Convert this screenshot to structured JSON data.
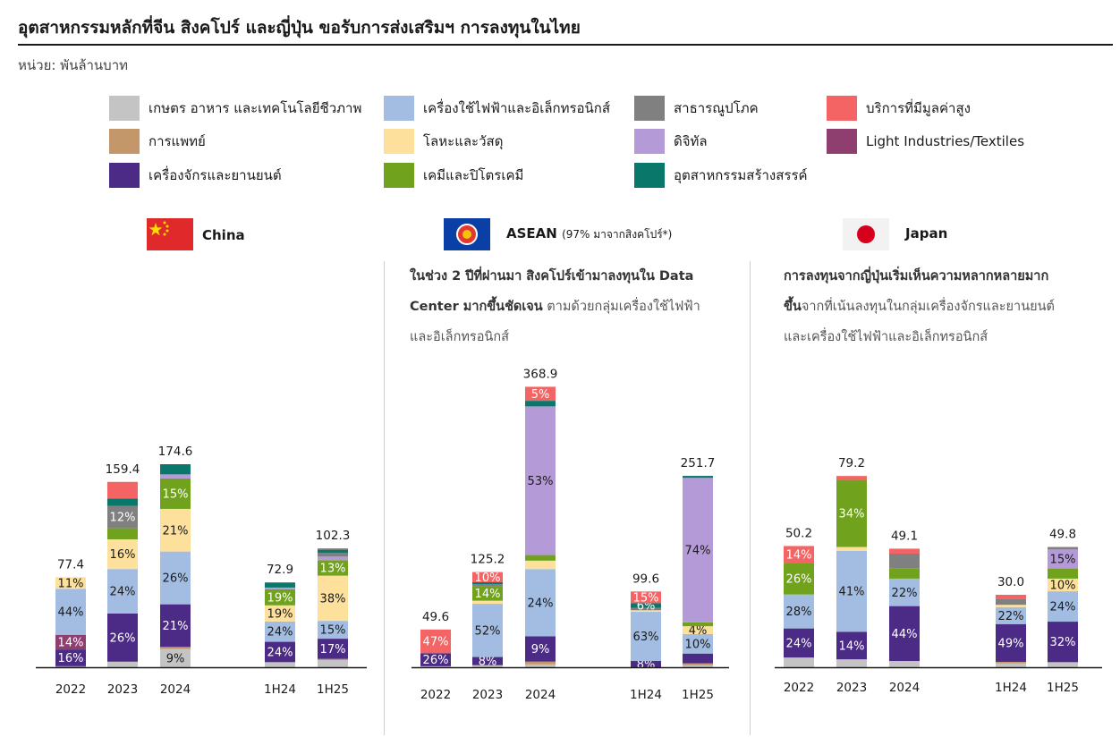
{
  "title": "อุตสาหกรรมหลักที่จีน  สิงคโปร์ และญี่ปุ่น ขอรับการส่งเสริมฯ  การลงทุนในไทย",
  "unit": "หน่วย: พันล้านบาท",
  "legend": [
    {
      "key": "agri",
      "label": "เกษตร อาหาร และเทคโนโลยีชีวภาพ",
      "color": "#c4c4c4"
    },
    {
      "key": "elec",
      "label": "เครื่องใช้ไฟฟ้าและอิเล็กทรอนิกส์",
      "color": "#a3bde2"
    },
    {
      "key": "util",
      "label": "สาธารณูปโภค",
      "color": "#808080"
    },
    {
      "key": "hvs",
      "label": "บริการที่มีมูลค่าสูง",
      "color": "#f46464"
    },
    {
      "key": "med",
      "label": "การแพทย์",
      "color": "#c4976b"
    },
    {
      "key": "metal",
      "label": "โลหะและวัสดุ",
      "color": "#fde09b"
    },
    {
      "key": "digital",
      "label": "ดิจิทัล",
      "color": "#b59ad8"
    },
    {
      "key": "light",
      "label": "Light Industries/Textiles",
      "color": "#8e3e6f"
    },
    {
      "key": "mach",
      "label": "เครื่องจักรและยานยนต์",
      "color": "#4b2b85"
    },
    {
      "key": "chem",
      "label": "เคมีและปิโตรเคมี",
      "color": "#70a21e"
    },
    {
      "key": "creative",
      "label": "อุตสาหกรรมสร้างสรรค์",
      "color": "#0a776b"
    }
  ],
  "panels": [
    {
      "name": "China",
      "subtitle": ""
    },
    {
      "name": "ASEAN",
      "subtitle": "(97% มาจากสิงคโปร์*)"
    },
    {
      "name": "Japan",
      "subtitle": ""
    }
  ],
  "notes": {
    "asean": {
      "bold1": "ในช่วง 2 ปีที่ผ่านมา สิงคโปร์เข้ามาลงทุนใน Data",
      "bold2": "Center มากขึ้นชัดเจน",
      "rest2": " ตามด้วยกลุ่มเครื่องใช้ไฟฟ้า",
      "line3": "และอิเล็กทรอนิกส์"
    },
    "japan": {
      "bold1": "การลงทุนจากญี่ปุ่นเริ่มเห็นความหลากหลายมาก",
      "bold2": "ขึ้น",
      "rest2": "จากที่เน้นลงทุนในกลุ่มเครื่องจักรและยานยนต์",
      "line3": "และเครื่องใช้ไฟฟ้าและอิเล็กทรอนิกส์"
    }
  },
  "chart_data": [
    {
      "type": "bar",
      "stacked": true,
      "title": "China",
      "categories": [
        "2022",
        "2023",
        "2024",
        "1H24",
        "1H25"
      ],
      "totals": [
        77.4,
        159.4,
        174.6,
        72.9,
        102.3
      ],
      "shares": [
        {
          "agri": 0,
          "mach": 16,
          "elec": 44,
          "metal": 11,
          "med": 1,
          "light": 14,
          "chem": 0,
          "util": 0,
          "creative": 0,
          "hvs": 0,
          "digital": 0
        },
        {
          "agri": 3,
          "mach": 26,
          "elec": 24,
          "metal": 16,
          "chem": 6,
          "util": 12,
          "creative": 4,
          "hvs": 9
        },
        {
          "agri": 9,
          "med": 1,
          "mach": 21,
          "elec": 26,
          "metal": 21,
          "chem": 15,
          "digital": 2,
          "creative": 5
        },
        {
          "agri": 6,
          "mach": 24,
          "elec": 24,
          "metal": 19,
          "chem": 19,
          "digital": 2,
          "creative": 6
        },
        {
          "agri": 6,
          "med": 1,
          "mach": 17,
          "elec": 15,
          "metal": 38,
          "chem": 13,
          "digital": 3,
          "creative": 3,
          "util": 3,
          "hvs": 1
        }
      ],
      "labels": [
        {
          "mach": "16%",
          "elec": "44%",
          "metal": "11%",
          "light": "14%"
        },
        {
          "mach": "26%",
          "elec": "24%",
          "metal": "16%",
          "util": "12%"
        },
        {
          "agri": "9%",
          "mach": "21%",
          "elec": "26%",
          "metal": "21%",
          "chem": "15%"
        },
        {
          "mach": "24%",
          "elec": "24%",
          "metal": "19%",
          "chem": "19%"
        },
        {
          "mach": "17%",
          "elec": "15%",
          "metal": "38%",
          "chem": "13%"
        }
      ]
    },
    {
      "type": "bar",
      "stacked": true,
      "title": "ASEAN",
      "categories": [
        "2022",
        "2023",
        "2024",
        "1H24",
        "1H25"
      ],
      "totals": [
        49.6,
        125.2,
        368.9,
        99.6,
        251.7
      ],
      "shares": [
        {
          "mach": 26,
          "hvs": 47,
          "agri": 2
        },
        {
          "agri": 2,
          "mach": 8,
          "elec": 52,
          "chem": 14,
          "metal": 3,
          "creative": 2,
          "util": 2,
          "hvs": 10
        },
        {
          "agri": 1,
          "med": 1,
          "mach": 9,
          "elec": 24,
          "metal": 3,
          "chem": 2,
          "digital": 53,
          "creative": 2,
          "hvs": 5
        },
        {
          "mach": 8,
          "elec": 63,
          "metal": 2,
          "creative": 6,
          "util": 3,
          "hvs": 15
        },
        {
          "agri": 1,
          "med": 1,
          "mach": 5,
          "elec": 10,
          "metal": 4,
          "chem": 2,
          "digital": 74,
          "creative": 1
        }
      ],
      "labels": [
        {
          "mach": "26%",
          "hvs": "47%"
        },
        {
          "mach": "8%",
          "elec": "52%",
          "chem": "14%",
          "hvs": "10%"
        },
        {
          "mach": "9%",
          "elec": "24%",
          "digital": "53%",
          "hvs": "5%"
        },
        {
          "mach": "8%",
          "elec": "63%",
          "creative": "6%",
          "hvs": "15%"
        },
        {
          "elec": "10%",
          "metal": "4%",
          "digital": "74%"
        }
      ]
    },
    {
      "type": "bar",
      "stacked": true,
      "title": "Japan",
      "categories": [
        "2022",
        "2023",
        "2024",
        "1H24",
        "1H25"
      ],
      "totals": [
        50.2,
        79.2,
        49.1,
        30.0,
        49.8
      ],
      "shares": [
        {
          "agri": 8,
          "mach": 24,
          "elec": 28,
          "chem": 26,
          "hvs": 14
        },
        {
          "agri": 4,
          "mach": 14,
          "elec": 41,
          "metal": 2,
          "chem": 34,
          "hvs": 2
        },
        {
          "agri": 5,
          "mach": 44,
          "elec": 22,
          "chem": 8,
          "util": 12,
          "hvs": 4
        },
        {
          "agri": 5,
          "med": 2,
          "mach": 49,
          "elec": 22,
          "metal": 3,
          "util": 8,
          "hvs": 5
        },
        {
          "agri": 4,
          "mach": 32,
          "elec": 24,
          "metal": 10,
          "chem": 8,
          "digital": 15,
          "util": 2
        }
      ],
      "labels": [
        {
          "mach": "24%",
          "elec": "28%",
          "chem": "26%",
          "hvs": "14%"
        },
        {
          "mach": "14%",
          "elec": "41%",
          "chem": "34%"
        },
        {
          "mach": "44%",
          "elec": "22%"
        },
        {
          "mach": "49%",
          "elec": "22%"
        },
        {
          "mach": "32%",
          "elec": "24%",
          "metal": "10%",
          "digital": "15%"
        }
      ]
    }
  ]
}
